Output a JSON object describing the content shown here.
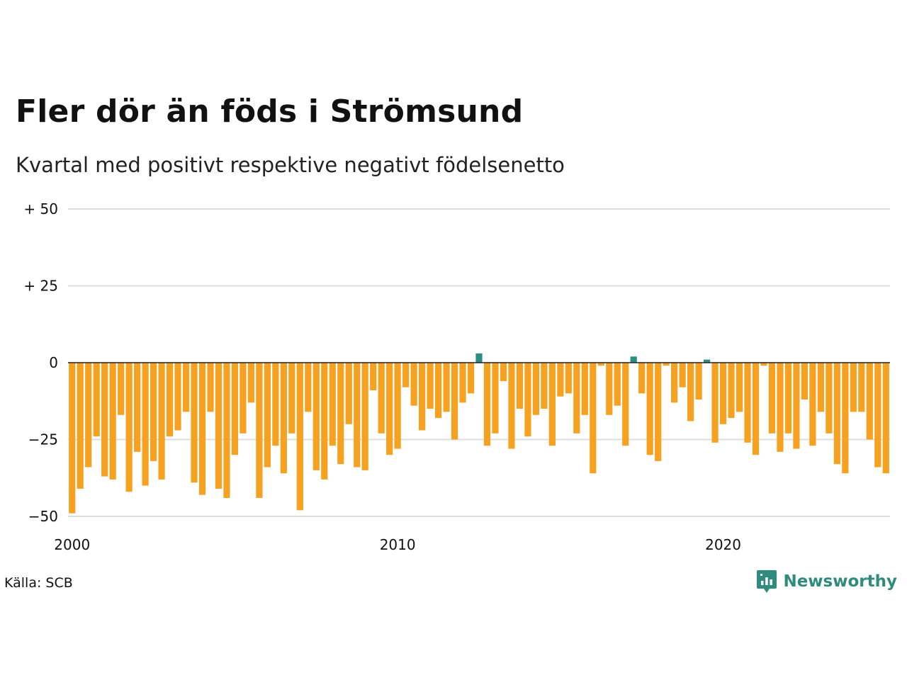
{
  "header": {
    "title": "Fler dör än föds i Strömsund",
    "subtitle": "Kvartal med positivt respektive negativt födelsenetto"
  },
  "footer": {
    "source": "Källa: SCB",
    "brand": "Newsworthy"
  },
  "colors": {
    "negative": "#f6a11f",
    "positive": "#2a8f80",
    "grid": "#dddddd",
    "zero_line": "#222222",
    "brand": "#2e8b7e"
  },
  "chart_data": {
    "type": "bar",
    "title": "Fler dör än föds i Strömsund",
    "subtitle": "Kvartal med positivt respektive negativt födelsenetto",
    "x_start": 2000,
    "periods_per_year": 4,
    "x_ticks": [
      2000,
      2010,
      2020
    ],
    "y_ticks": [
      {
        "value": 50,
        "label": "+ 50"
      },
      {
        "value": 25,
        "label": "+ 25"
      },
      {
        "value": 0,
        "label": "0"
      },
      {
        "value": -25,
        "label": "−25"
      },
      {
        "value": -50,
        "label": "−50"
      }
    ],
    "ylim": [
      -50,
      50
    ],
    "grid": true,
    "values": [
      -49,
      -41,
      -34,
      -24,
      -37,
      -38,
      -17,
      -42,
      -29,
      -40,
      -32,
      -38,
      -24,
      -22,
      -16,
      -39,
      -43,
      -16,
      -41,
      -44,
      -30,
      -23,
      -13,
      -44,
      -34,
      -27,
      -36,
      -23,
      -48,
      -16,
      -35,
      -38,
      -27,
      -33,
      -20,
      -34,
      -35,
      -9,
      -23,
      -30,
      -28,
      -8,
      -14,
      -22,
      -15,
      -18,
      -16,
      -25,
      -13,
      -10,
      3,
      -27,
      -23,
      -6,
      -28,
      -15,
      -24,
      -17,
      -15,
      -27,
      -11,
      -10,
      -23,
      -17,
      -36,
      -1,
      -17,
      -14,
      -27,
      2,
      -10,
      -30,
      -32,
      -1,
      -13,
      -8,
      -19,
      -12,
      1,
      -26,
      -20,
      -18,
      -16,
      -26,
      -30,
      -1,
      -23,
      -29,
      -23,
      -28,
      -12,
      -27,
      -16,
      -23,
      -33,
      -36,
      -16,
      -16,
      -25,
      -34,
      -36
    ]
  }
}
